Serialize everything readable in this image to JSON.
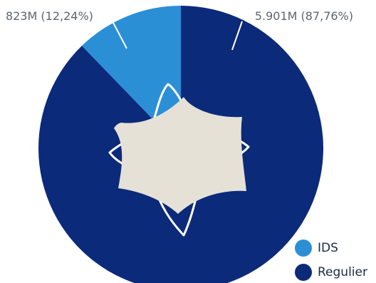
{
  "chart_data": {
    "type": "pie",
    "series": [
      {
        "name": "IDS",
        "value": 823,
        "label": "823M (12,24%)",
        "percent": 12.24,
        "color": "#2b8fd6"
      },
      {
        "name": "Regulier",
        "value": 5901,
        "label": "5.901M (87,76%)",
        "percent": 87.76,
        "color": "#0c2a7a"
      }
    ],
    "unit": "M"
  },
  "legend": {
    "placement": "bottom-right"
  },
  "center_emblem": {
    "fill": "#e6e1d7",
    "outline": "#ffffff"
  }
}
